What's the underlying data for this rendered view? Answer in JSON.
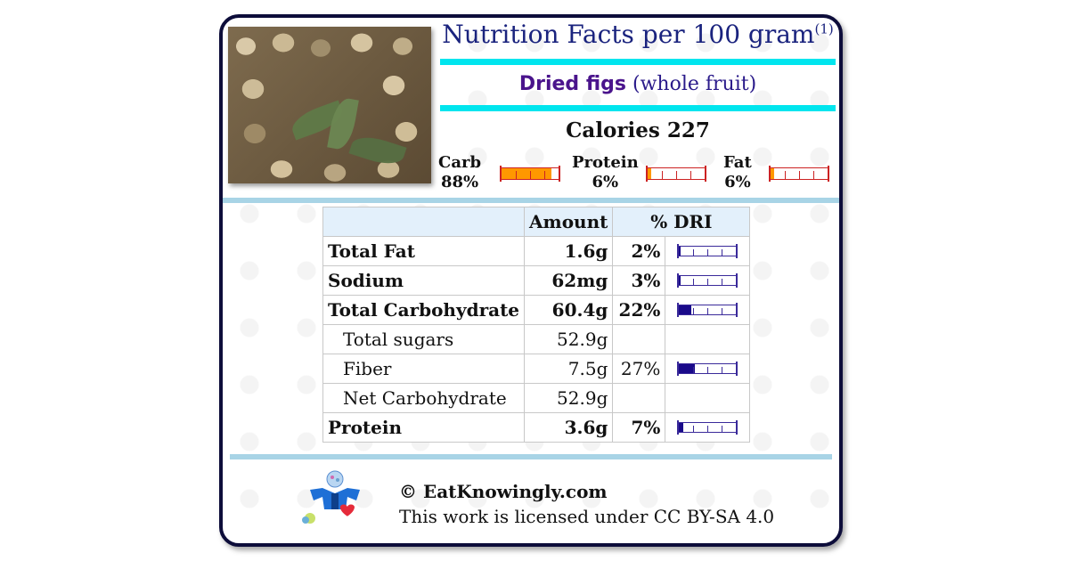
{
  "header": {
    "title": "Nutrition Facts per 100 gram",
    "footnote_mark": "(1)"
  },
  "food": {
    "name": "Dried figs",
    "qualifier": "(whole fruit)",
    "image_subject": "dried figs with leaves"
  },
  "calories": {
    "label": "Calories",
    "value": "227"
  },
  "macros": [
    {
      "label": "Carb",
      "percent_label": "88%",
      "percent": 88
    },
    {
      "label": "Protein",
      "percent_label": "6%",
      "percent": 6
    },
    {
      "label": "Fat",
      "percent_label": "6%",
      "percent": 6
    }
  ],
  "table": {
    "headers": {
      "nutrient": "",
      "amount": "Amount",
      "dri": "% DRI"
    },
    "rows": [
      {
        "label": "Total Fat",
        "amount": "1.6g",
        "dri_label": "2%",
        "dri": 2,
        "major": true
      },
      {
        "label": "Sodium",
        "amount": "62mg",
        "dri_label": "3%",
        "dri": 3,
        "major": true
      },
      {
        "label": "Total Carbohydrate",
        "amount": "60.4g",
        "dri_label": "22%",
        "dri": 22,
        "major": true
      },
      {
        "label": "Total sugars",
        "amount": "52.9g",
        "dri_label": "",
        "dri": null,
        "major": false
      },
      {
        "label": "Fiber",
        "amount": "7.5g",
        "dri_label": "27%",
        "dri": 27,
        "major": false
      },
      {
        "label": "Net Carbohydrate",
        "amount": "52.9g",
        "dri_label": "",
        "dri": null,
        "major": false
      },
      {
        "label": "Protein",
        "amount": "3.6g",
        "dri_label": "7%",
        "dri": 7,
        "major": true
      }
    ]
  },
  "footer": {
    "brand": "© EatKnowingly.com",
    "license": "This work is licensed under CC BY-SA 4.0"
  },
  "colors": {
    "card_border": "#0d0d3a",
    "title": "#1a237e",
    "accent_bar": "#00e5ee",
    "separator": "#a8d4e6",
    "macro_fill": "#ff9800",
    "macro_outline": "#cc2222",
    "dri_fill": "#1a0a8a"
  }
}
